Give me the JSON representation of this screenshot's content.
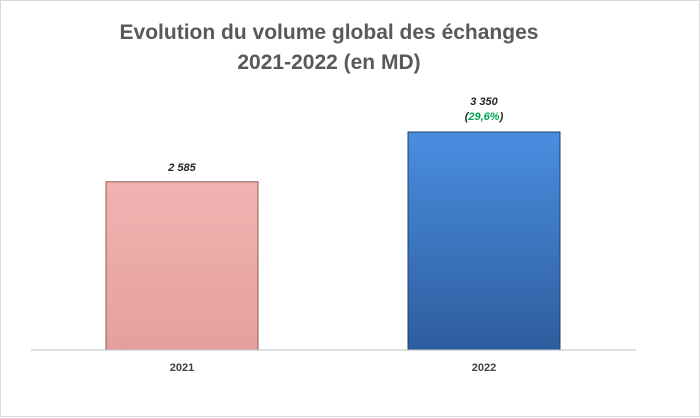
{
  "chart_data": {
    "type": "bar",
    "title": "Evolution du volume global des échanges",
    "subtitle": "2021-2022 (en MD)",
    "categories": [
      "2021",
      "2022"
    ],
    "values": [
      2585,
      3350
    ],
    "value_labels": [
      "2 585",
      "3 350"
    ],
    "growth": {
      "open": "(",
      "value": "29,6%",
      "close": ")",
      "color": "#00a651"
    },
    "xlabel": "",
    "ylabel": "",
    "grid": false,
    "legend": "none",
    "colors": {
      "bar_2021_top": "#f0b3b1",
      "bar_2021_bottom": "#e4a09e",
      "bar_2021_stroke": "#8e5a58",
      "bar_2022_top": "#4a8ee0",
      "bar_2022_bottom": "#2e5d9e",
      "bar_2022_stroke": "#1f3f6e",
      "axis": "#bfbfbf",
      "title": "#595959"
    }
  }
}
